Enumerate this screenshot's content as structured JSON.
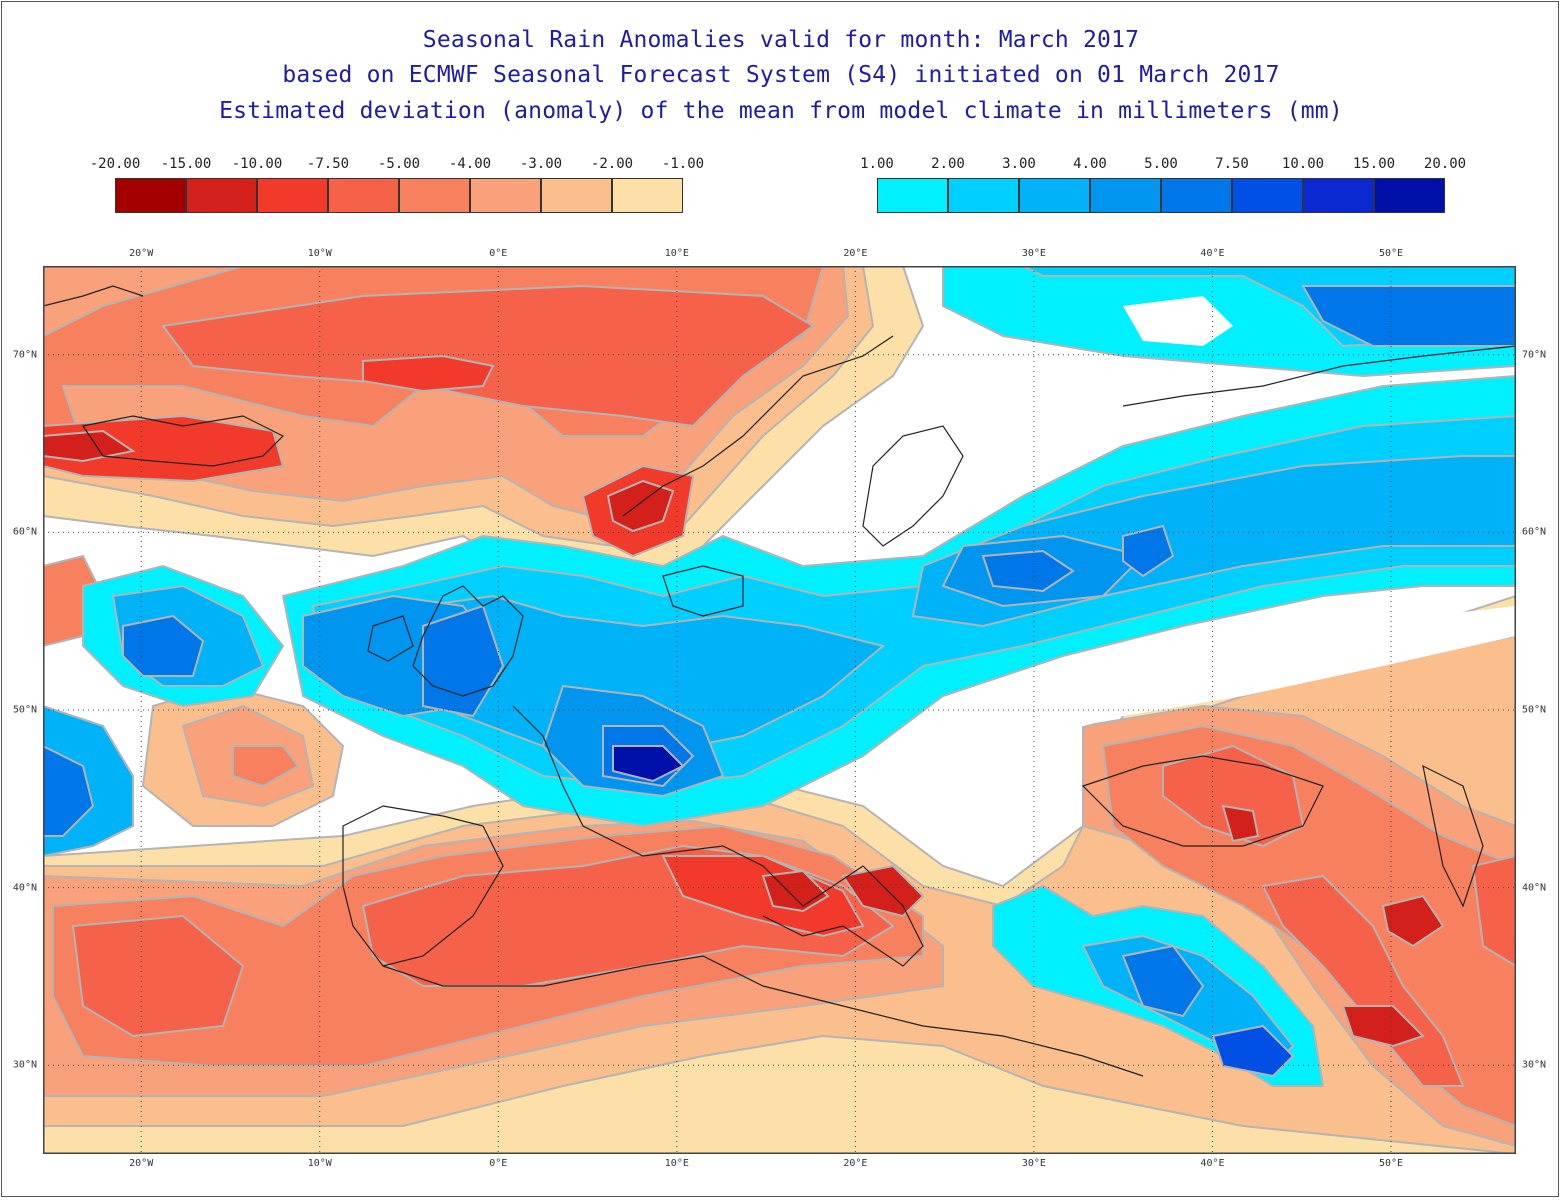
{
  "title": {
    "line1": "Seasonal Rain Anomalies valid for month: March 2017",
    "line2": "based on ECMWF Seasonal Forecast System (S4) initiated on 01 March 2017",
    "line3": "Estimated deviation (anomaly) of the mean from model climate in millimeters (mm)"
  },
  "legend_negative": {
    "ticks": [
      "-20.00",
      "-15.00",
      "-10.00",
      "-7.50",
      "-5.00",
      "-4.00",
      "-3.00",
      "-2.00",
      "-1.00"
    ],
    "colors": [
      "#a50000",
      "#d4201a",
      "#f23a2a",
      "#f6614a",
      "#f7805f",
      "#f9a17a",
      "#fbbf8e",
      "#fde0a8"
    ]
  },
  "legend_positive": {
    "ticks": [
      "1.00",
      "2.00",
      "3.00",
      "4.00",
      "5.00",
      "7.50",
      "10.00",
      "15.00",
      "20.00"
    ],
    "colors": [
      "#00f0ff",
      "#00d0ff",
      "#00b2f7",
      "#0096f0",
      "#0077e8",
      "#0050e6",
      "#0a28d0",
      "#0010a8"
    ]
  },
  "map": {
    "lon_labels": [
      "20°W",
      "10°W",
      "0°E",
      "10°E",
      "20°E",
      "30°E",
      "40°E",
      "50°E"
    ],
    "lat_labels": [
      "70°N",
      "60°N",
      "50°N",
      "40°N",
      "30°N"
    ],
    "lon_range": [
      -25.5,
      57
    ],
    "lat_range": [
      25,
      75
    ],
    "anomaly_units": "mm",
    "ocean_land_base": "#ffffff",
    "coastline_color": "#222222"
  }
}
